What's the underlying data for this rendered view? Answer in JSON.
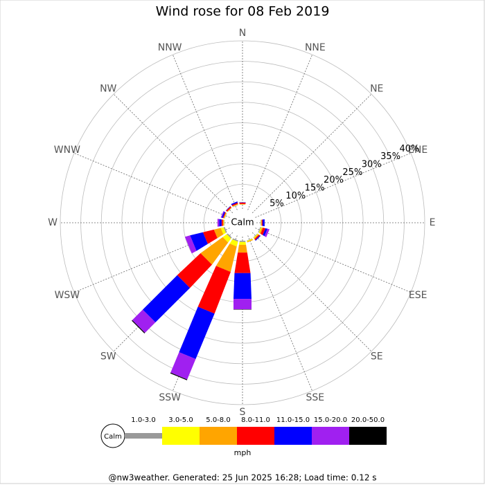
{
  "chart_data": {
    "type": "windrose",
    "title": "Wind rose for 08 Feb 2019",
    "categories": [
      "N",
      "NNE",
      "NE",
      "ENE",
      "E",
      "ESE",
      "SE",
      "SSE",
      "S",
      "SSW",
      "SW",
      "WSW",
      "W",
      "WNW",
      "NW",
      "NNW"
    ],
    "rlim": [
      0,
      40
    ],
    "rticks": [
      {
        "value": 5,
        "label": "5%"
      },
      {
        "value": 10,
        "label": "10%"
      },
      {
        "value": 15,
        "label": "15%"
      },
      {
        "value": 20,
        "label": "20%"
      },
      {
        "value": 25,
        "label": "25%"
      },
      {
        "value": 30,
        "label": "30%"
      },
      {
        "value": 35,
        "label": "35%"
      },
      {
        "value": 40,
        "label": "40%"
      }
    ],
    "grid": true,
    "calm_label": "Calm",
    "units": "mph",
    "series": [
      {
        "name": "1.0-3.0",
        "color": "#999999",
        "values": [
          0.05,
          0,
          0,
          0,
          0.1,
          0.2,
          0.1,
          0.1,
          0.3,
          0.3,
          0.3,
          0.3,
          0.1,
          0.1,
          0.05,
          0.1
        ]
      },
      {
        "name": "3.0-5.0",
        "color": "#ffff00",
        "values": [
          0.05,
          0,
          0,
          0,
          0.1,
          0.2,
          0.2,
          0.2,
          0.7,
          1.2,
          1.2,
          0.7,
          0.1,
          0.1,
          0.05,
          0.1
        ]
      },
      {
        "name": "5.0-8.0",
        "color": "#ffa500",
        "values": [
          0.1,
          0,
          0,
          0,
          0.1,
          0.3,
          0.2,
          0.2,
          1.9,
          6.3,
          6.6,
          1.7,
          0.2,
          0.1,
          0.1,
          0.1
        ]
      },
      {
        "name": "8.0-11.0",
        "color": "#ff0000",
        "values": [
          0.3,
          0,
          0,
          0,
          0.2,
          0.6,
          0.3,
          0,
          5.0,
          10.9,
          7.8,
          2.7,
          0.3,
          0.2,
          0.3,
          0.3
        ]
      },
      {
        "name": "11.0-15.0",
        "color": "#0000ff",
        "values": [
          0.1,
          0,
          0,
          0,
          0.5,
          0.5,
          0.2,
          0,
          6.3,
          12.0,
          11.9,
          3.2,
          0.6,
          0.3,
          0.1,
          0.3
        ]
      },
      {
        "name": "15.0-20.0",
        "color": "#a020f0",
        "values": [
          0,
          0,
          0,
          0,
          0,
          0.5,
          0,
          0,
          2.5,
          5.4,
          3.6,
          1.3,
          0.4,
          0.2,
          0,
          0
        ]
      },
      {
        "name": "20.0-50.0",
        "color": "#000000",
        "values": [
          0,
          0,
          0,
          0,
          0,
          0,
          0,
          0,
          0.1,
          0.2,
          0.2,
          0,
          0,
          0,
          0,
          0
        ]
      }
    ],
    "footer": "@nw3weather. Generated: 25 Jun 2025 16:28; Load time: 0.12 s"
  }
}
